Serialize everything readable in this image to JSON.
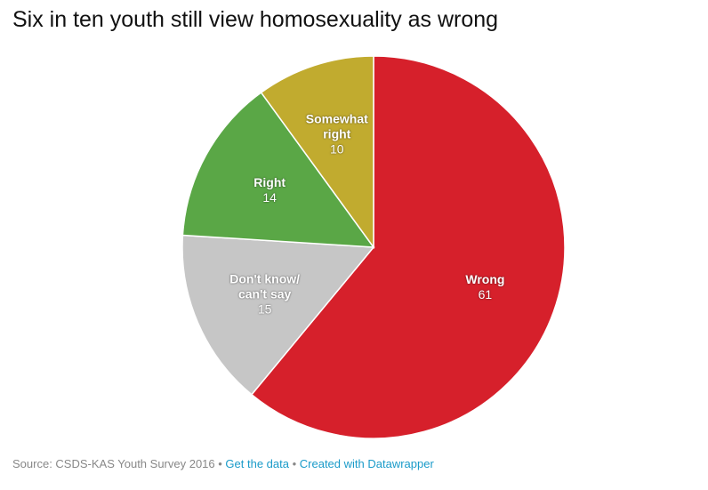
{
  "chart_data": {
    "type": "pie",
    "title": "Six in ten youth still view homosexuality as wrong",
    "categories": [
      "Wrong",
      "Don't know/ can't say",
      "Right",
      "Somewhat right"
    ],
    "values": [
      61,
      15,
      14,
      10
    ],
    "colors": [
      "#d6202b",
      "#c6c6c6",
      "#5aa746",
      "#c1ab2f"
    ],
    "source": "Source: CSDS-KAS Youth Survey 2016",
    "links": [
      "Get the data",
      "Created with Datawrapper"
    ]
  }
}
